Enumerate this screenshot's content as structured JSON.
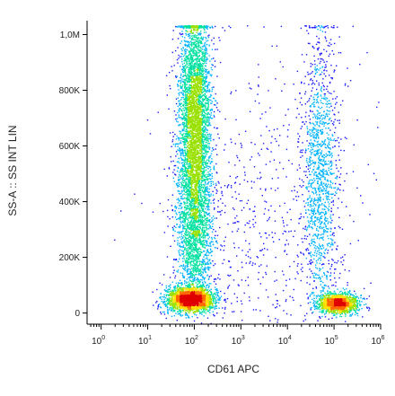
{
  "chart_data": {
    "type": "scatter",
    "title": "",
    "xlabel": "CD61 APC",
    "ylabel": "SS-A :: SS INT LIN",
    "xscale": "log",
    "xlim": [
      0.5,
      1000000
    ],
    "ylim": [
      -40000,
      1050000
    ],
    "grid": false,
    "x_ticks": [
      {
        "value": 1,
        "base": "10",
        "exp": "0"
      },
      {
        "value": 10,
        "base": "10",
        "exp": "1"
      },
      {
        "value": 100,
        "base": "10",
        "exp": "2"
      },
      {
        "value": 1000,
        "base": "10",
        "exp": "3"
      },
      {
        "value": 10000,
        "base": "10",
        "exp": "4"
      },
      {
        "value": 100000,
        "base": "10",
        "exp": "5"
      },
      {
        "value": 1000000,
        "base": "10",
        "exp": "6"
      }
    ],
    "y_ticks": [
      {
        "value": 0,
        "label": "0"
      },
      {
        "value": 200000,
        "label": "200K"
      },
      {
        "value": 400000,
        "label": "400K"
      },
      {
        "value": 600000,
        "label": "600K"
      },
      {
        "value": 800000,
        "label": "800K"
      },
      {
        "value": 1000000,
        "label": "1,0M"
      }
    ],
    "populations": [
      {
        "center_x": 100,
        "center_y": 700000,
        "spread_logx": 0.17,
        "spread_y": 200000,
        "count": 3800
      },
      {
        "center_x": 100,
        "center_y": 300000,
        "spread_logx": 0.2,
        "spread_y": 140000,
        "count": 1700
      },
      {
        "center_x": 80,
        "center_y": 50000,
        "spread_logx": 0.25,
        "spread_y": 22000,
        "count": 2300
      },
      {
        "center_x": 120000,
        "center_y": 35000,
        "spread_logx": 0.22,
        "spread_y": 18000,
        "count": 1400
      },
      {
        "center_x": 50000,
        "center_y": 500000,
        "spread_logx": 0.2,
        "spread_y": 260000,
        "count": 1300
      },
      {
        "center_x": 3000,
        "center_y": 300000,
        "spread_logx": 1.1,
        "spread_y": 300000,
        "count": 700
      }
    ],
    "colormap": [
      "#1a1aff",
      "#00b4ff",
      "#00e0a0",
      "#9ae000",
      "#ffe000",
      "#ff6a00",
      "#e00000"
    ]
  }
}
